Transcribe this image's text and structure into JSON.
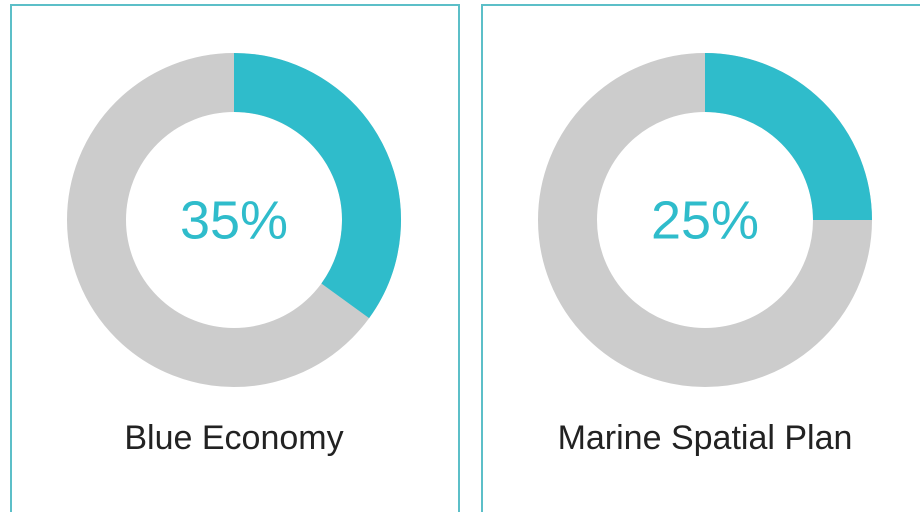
{
  "chart_data": [
    {
      "type": "donut",
      "title": "Blue Economy",
      "values": [
        35
      ],
      "value_labels": [
        "35%"
      ],
      "ylim": [
        0,
        100
      ],
      "color": "#2fbccb",
      "track_color": "#cccccc"
    },
    {
      "type": "donut",
      "title": "Marine Spatial Plan",
      "values": [
        25
      ],
      "value_labels": [
        "25%"
      ],
      "ylim": [
        0,
        100
      ],
      "color": "#2fbccb",
      "track_color": "#cccccc"
    }
  ]
}
